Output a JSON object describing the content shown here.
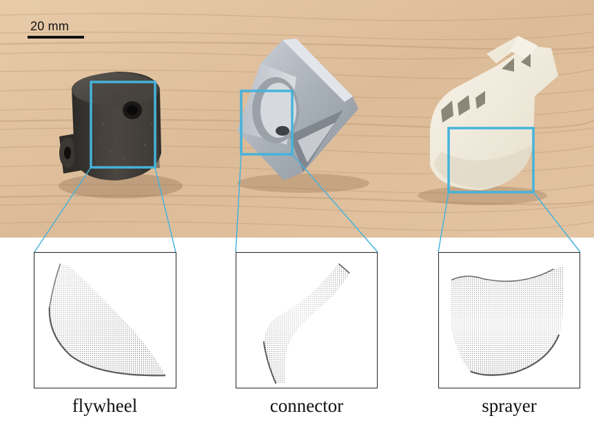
{
  "scale_bar": {
    "label": "20 mm"
  },
  "objects": [
    {
      "id": "flywheel",
      "caption": "flywheel",
      "material": "dark steel"
    },
    {
      "id": "connector",
      "caption": "connector",
      "material": "aluminium"
    },
    {
      "id": "sprayer",
      "caption": "sprayer",
      "material": "white plastic"
    }
  ],
  "colors": {
    "highlight": "#45b3dc",
    "wood_light": "#e2c3a2",
    "wood_dark": "#c9a37e",
    "point_cloud": "#555555"
  }
}
